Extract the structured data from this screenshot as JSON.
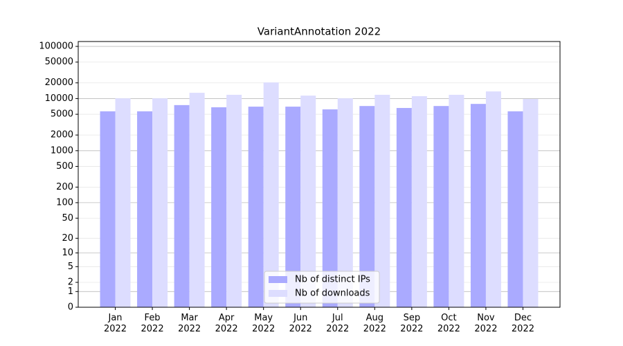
{
  "chart_data": {
    "type": "bar",
    "title": "VariantAnnotation 2022",
    "categories": [
      "Jan\n2022",
      "Feb\n2022",
      "Mar\n2022",
      "Apr\n2022",
      "May\n2022",
      "Jun\n2022",
      "Jul\n2022",
      "Aug\n2022",
      "Sep\n2022",
      "Oct\n2022",
      "Nov\n2022",
      "Dec\n2022"
    ],
    "series": [
      {
        "name": "Nb of distinct IPs",
        "color": "#aaaaff",
        "values": [
          5700,
          5700,
          7500,
          6800,
          7000,
          7000,
          6200,
          7200,
          6600,
          7200,
          7900,
          5700
        ]
      },
      {
        "name": "Nb of downloads",
        "color": "#ddddff",
        "values": [
          10100,
          10100,
          12900,
          11800,
          20400,
          11400,
          10100,
          11800,
          11100,
          11800,
          13700,
          9800
        ]
      }
    ],
    "yscale": "symlog",
    "ylim": [
      0,
      124000
    ],
    "yticks": [
      0,
      1,
      2,
      5,
      10,
      20,
      50,
      100,
      200,
      500,
      1000,
      2000,
      5000,
      10000,
      20000,
      50000,
      100000
    ],
    "grid": true,
    "legend": "lower center"
  }
}
